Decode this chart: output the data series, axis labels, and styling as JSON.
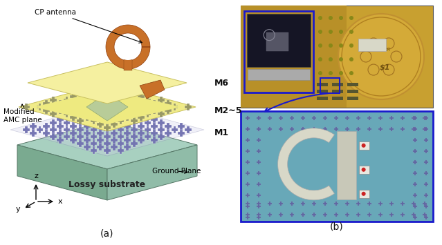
{
  "subfig_a_label": "(a)",
  "subfig_b_label": "(b)",
  "background_color": "#ffffff",
  "fig_width": 6.39,
  "fig_height": 3.55,
  "labels": {
    "cp_antenna": "CP antenna",
    "modified_amc": "Modified\nAMC plane",
    "lossy_substrate": "Lossy substrate",
    "ground_plane": "Ground Plane",
    "M6": "M6",
    "M25": "M2~5",
    "M1": "M1"
  },
  "antenna_color": "#c87028",
  "text_fontsize": 7.5,
  "layer_label_fontsize": 9
}
